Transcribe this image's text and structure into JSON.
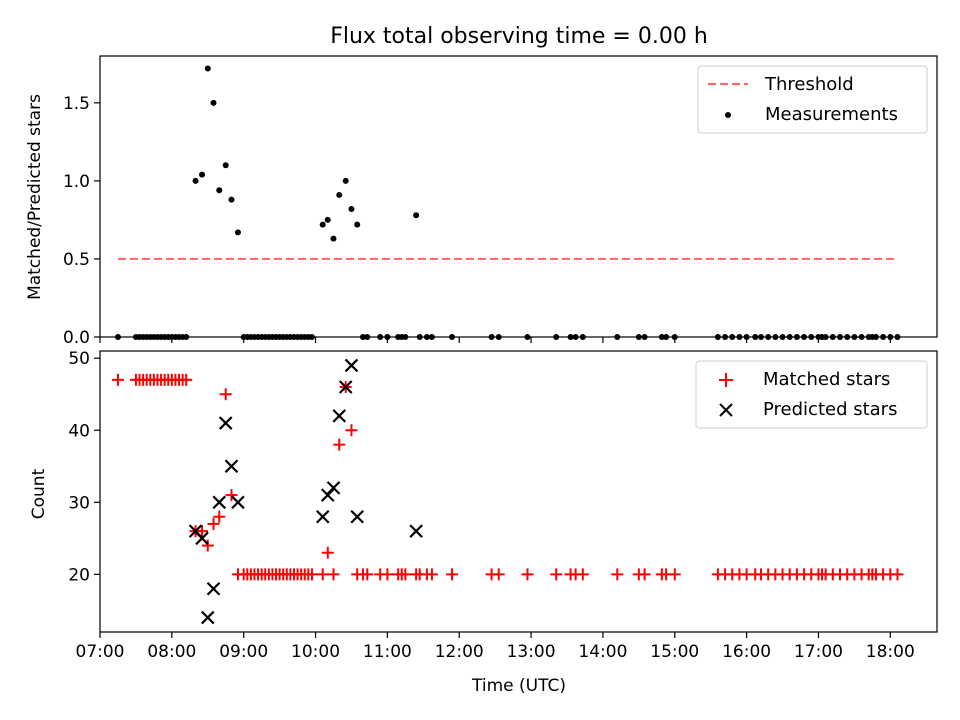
{
  "chart_data": [
    {
      "type": "scatter",
      "title": "Flux total observing time = 0.00 h",
      "xlabel": "",
      "ylabel": "Matched/Predicted stars",
      "xlim": [
        7.0,
        18.65
      ],
      "ylim": [
        0.0,
        1.8
      ],
      "yticks": [
        0.0,
        0.5,
        1.0,
        1.5
      ],
      "yticklabels": [
        "0.0",
        "0.5",
        "1.0",
        "1.5"
      ],
      "legend_position": "top-right",
      "threshold": {
        "name": "Threshold",
        "value": 0.5,
        "x_range": [
          7.25,
          18.05
        ],
        "color": "#ff6b6b",
        "style": "dashed"
      },
      "series": [
        {
          "name": "Measurements",
          "color": "#000000",
          "marker": "dot",
          "points": [
            [
              7.25,
              0
            ],
            [
              7.5,
              0
            ],
            [
              7.55,
              0
            ],
            [
              7.6,
              0
            ],
            [
              7.65,
              0
            ],
            [
              7.7,
              0
            ],
            [
              7.75,
              0
            ],
            [
              7.8,
              0
            ],
            [
              7.85,
              0
            ],
            [
              7.9,
              0
            ],
            [
              7.95,
              0
            ],
            [
              8.0,
              0
            ],
            [
              8.05,
              0
            ],
            [
              8.1,
              0
            ],
            [
              8.15,
              0
            ],
            [
              8.2,
              0
            ],
            [
              8.33,
              1.0
            ],
            [
              8.42,
              1.04
            ],
            [
              8.5,
              1.72
            ],
            [
              8.58,
              1.5
            ],
            [
              8.66,
              0.94
            ],
            [
              8.75,
              1.1
            ],
            [
              8.83,
              0.88
            ],
            [
              8.92,
              0.67
            ],
            [
              9.0,
              0
            ],
            [
              9.05,
              0
            ],
            [
              9.1,
              0
            ],
            [
              9.15,
              0
            ],
            [
              9.2,
              0
            ],
            [
              9.25,
              0
            ],
            [
              9.3,
              0
            ],
            [
              9.35,
              0
            ],
            [
              9.4,
              0
            ],
            [
              9.45,
              0
            ],
            [
              9.5,
              0
            ],
            [
              9.55,
              0
            ],
            [
              9.6,
              0
            ],
            [
              9.65,
              0
            ],
            [
              9.7,
              0
            ],
            [
              9.75,
              0
            ],
            [
              9.8,
              0
            ],
            [
              9.85,
              0
            ],
            [
              9.9,
              0
            ],
            [
              9.95,
              0
            ],
            [
              10.1,
              0.72
            ],
            [
              10.17,
              0.75
            ],
            [
              10.25,
              0.63
            ],
            [
              10.33,
              0.91
            ],
            [
              10.42,
              1.0
            ],
            [
              10.5,
              0.82
            ],
            [
              10.58,
              0.72
            ],
            [
              10.66,
              0
            ],
            [
              10.72,
              0
            ],
            [
              10.9,
              0
            ],
            [
              11.0,
              0
            ],
            [
              11.15,
              0
            ],
            [
              11.2,
              0
            ],
            [
              11.25,
              0
            ],
            [
              11.4,
              0.78
            ],
            [
              11.45,
              0
            ],
            [
              11.55,
              0
            ],
            [
              11.62,
              0
            ],
            [
              11.9,
              0
            ],
            [
              12.45,
              0
            ],
            [
              12.55,
              0
            ],
            [
              12.95,
              0
            ],
            [
              13.35,
              0
            ],
            [
              13.55,
              0
            ],
            [
              13.62,
              0
            ],
            [
              13.72,
              0
            ],
            [
              14.2,
              0
            ],
            [
              14.5,
              0
            ],
            [
              14.58,
              0
            ],
            [
              14.82,
              0
            ],
            [
              14.88,
              0
            ],
            [
              15.0,
              0
            ],
            [
              15.6,
              0
            ],
            [
              15.7,
              0
            ],
            [
              15.8,
              0
            ],
            [
              15.9,
              0
            ],
            [
              16.0,
              0
            ],
            [
              16.12,
              0
            ],
            [
              16.2,
              0
            ],
            [
              16.3,
              0
            ],
            [
              16.4,
              0
            ],
            [
              16.5,
              0
            ],
            [
              16.6,
              0
            ],
            [
              16.7,
              0
            ],
            [
              16.8,
              0
            ],
            [
              16.9,
              0
            ],
            [
              17.0,
              0
            ],
            [
              17.05,
              0
            ],
            [
              17.1,
              0
            ],
            [
              17.2,
              0
            ],
            [
              17.3,
              0
            ],
            [
              17.4,
              0
            ],
            [
              17.5,
              0
            ],
            [
              17.6,
              0
            ],
            [
              17.7,
              0
            ],
            [
              17.75,
              0
            ],
            [
              17.8,
              0
            ],
            [
              17.9,
              0
            ],
            [
              18.0,
              0
            ],
            [
              18.1,
              0
            ]
          ]
        }
      ]
    },
    {
      "type": "scatter",
      "title": "",
      "xlabel": "Time (UTC)",
      "ylabel": "Count",
      "xlim": [
        7.0,
        18.65
      ],
      "ylim": [
        12.0,
        51.0
      ],
      "xticks": [
        7,
        8,
        9,
        10,
        11,
        12,
        13,
        14,
        15,
        16,
        17,
        18
      ],
      "xticklabels": [
        "07:00",
        "08:00",
        "09:00",
        "10:00",
        "11:00",
        "12:00",
        "13:00",
        "14:00",
        "15:00",
        "16:00",
        "17:00",
        "18:00"
      ],
      "yticks": [
        20,
        30,
        40,
        50
      ],
      "yticklabels": [
        "20",
        "30",
        "40",
        "50"
      ],
      "legend_position": "top-right",
      "series": [
        {
          "name": "Matched stars",
          "color": "#ff0000",
          "marker": "plus",
          "points": [
            [
              7.25,
              47
            ],
            [
              7.5,
              47
            ],
            [
              7.55,
              47
            ],
            [
              7.6,
              47
            ],
            [
              7.65,
              47
            ],
            [
              7.7,
              47
            ],
            [
              7.75,
              47
            ],
            [
              7.8,
              47
            ],
            [
              7.85,
              47
            ],
            [
              7.9,
              47
            ],
            [
              7.95,
              47
            ],
            [
              8.0,
              47
            ],
            [
              8.05,
              47
            ],
            [
              8.1,
              47
            ],
            [
              8.15,
              47
            ],
            [
              8.2,
              47
            ],
            [
              8.33,
              26
            ],
            [
              8.42,
              26
            ],
            [
              8.5,
              24
            ],
            [
              8.58,
              27
            ],
            [
              8.66,
              28
            ],
            [
              8.75,
              45
            ],
            [
              8.83,
              31
            ],
            [
              8.92,
              20
            ],
            [
              9.0,
              20
            ],
            [
              9.05,
              20
            ],
            [
              9.1,
              20
            ],
            [
              9.15,
              20
            ],
            [
              9.2,
              20
            ],
            [
              9.25,
              20
            ],
            [
              9.3,
              20
            ],
            [
              9.35,
              20
            ],
            [
              9.4,
              20
            ],
            [
              9.45,
              20
            ],
            [
              9.5,
              20
            ],
            [
              9.55,
              20
            ],
            [
              9.6,
              20
            ],
            [
              9.65,
              20
            ],
            [
              9.7,
              20
            ],
            [
              9.75,
              20
            ],
            [
              9.8,
              20
            ],
            [
              9.85,
              20
            ],
            [
              9.9,
              20
            ],
            [
              9.95,
              20
            ],
            [
              10.1,
              20
            ],
            [
              10.17,
              23
            ],
            [
              10.25,
              20
            ],
            [
              10.33,
              38
            ],
            [
              10.42,
              46
            ],
            [
              10.5,
              40
            ],
            [
              10.58,
              20
            ],
            [
              10.66,
              20
            ],
            [
              10.72,
              20
            ],
            [
              10.9,
              20
            ],
            [
              11.0,
              20
            ],
            [
              11.15,
              20
            ],
            [
              11.2,
              20
            ],
            [
              11.25,
              20
            ],
            [
              11.4,
              20
            ],
            [
              11.45,
              20
            ],
            [
              11.55,
              20
            ],
            [
              11.62,
              20
            ],
            [
              11.9,
              20
            ],
            [
              12.45,
              20
            ],
            [
              12.55,
              20
            ],
            [
              12.95,
              20
            ],
            [
              13.35,
              20
            ],
            [
              13.55,
              20
            ],
            [
              13.62,
              20
            ],
            [
              13.72,
              20
            ],
            [
              14.2,
              20
            ],
            [
              14.5,
              20
            ],
            [
              14.58,
              20
            ],
            [
              14.82,
              20
            ],
            [
              14.88,
              20
            ],
            [
              15.0,
              20
            ],
            [
              15.6,
              20
            ],
            [
              15.7,
              20
            ],
            [
              15.8,
              20
            ],
            [
              15.9,
              20
            ],
            [
              16.0,
              20
            ],
            [
              16.12,
              20
            ],
            [
              16.2,
              20
            ],
            [
              16.3,
              20
            ],
            [
              16.4,
              20
            ],
            [
              16.5,
              20
            ],
            [
              16.6,
              20
            ],
            [
              16.7,
              20
            ],
            [
              16.8,
              20
            ],
            [
              16.9,
              20
            ],
            [
              17.0,
              20
            ],
            [
              17.05,
              20
            ],
            [
              17.1,
              20
            ],
            [
              17.2,
              20
            ],
            [
              17.3,
              20
            ],
            [
              17.4,
              20
            ],
            [
              17.5,
              20
            ],
            [
              17.6,
              20
            ],
            [
              17.7,
              20
            ],
            [
              17.75,
              20
            ],
            [
              17.8,
              20
            ],
            [
              17.9,
              20
            ],
            [
              18.0,
              20
            ],
            [
              18.1,
              20
            ]
          ]
        },
        {
          "name": "Predicted stars",
          "color": "#000000",
          "marker": "x",
          "points": [
            [
              8.33,
              26
            ],
            [
              8.42,
              25
            ],
            [
              8.5,
              14
            ],
            [
              8.58,
              18
            ],
            [
              8.66,
              30
            ],
            [
              8.75,
              41
            ],
            [
              8.83,
              35
            ],
            [
              8.92,
              30
            ],
            [
              10.1,
              28
            ],
            [
              10.17,
              31
            ],
            [
              10.25,
              32
            ],
            [
              10.33,
              42
            ],
            [
              10.42,
              46
            ],
            [
              10.5,
              49
            ],
            [
              10.58,
              28
            ],
            [
              11.4,
              26
            ]
          ]
        }
      ]
    }
  ]
}
